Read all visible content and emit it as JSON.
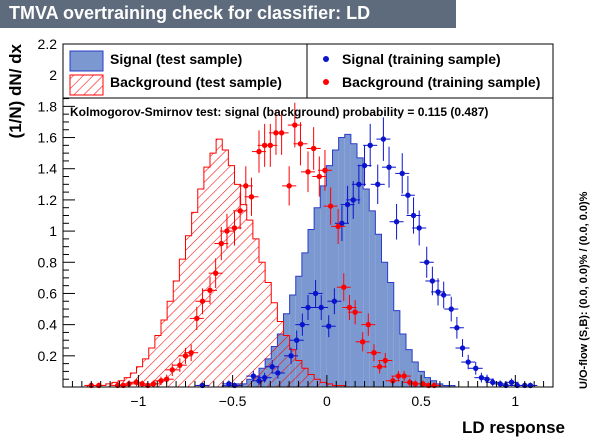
{
  "chart_data": {
    "type": "bar",
    "title": "TMVA overtraining check for classifier: LD",
    "xlabel": "LD response",
    "ylabel": "(1/N) dN/ dx",
    "right_label": "U/O-flow (S,B): (0.0, 0.0)% / (0.0, 0.0)%",
    "ks_text": "Kolmogorov-Smirnov test: signal (background) probability = 0.115 (0.487)",
    "xlim": [
      -1.4,
      1.2
    ],
    "ylim": [
      0,
      2.2
    ],
    "x_ticks": [
      -1,
      -0.5,
      0,
      0.5,
      1
    ],
    "x_tick_labels": [
      "−1",
      "−0.5",
      "0",
      "0.5",
      "1"
    ],
    "y_ticks": [
      0.2,
      0.4,
      0.6,
      0.8,
      1,
      1.2,
      1.4,
      1.6,
      1.8,
      2,
      2.2
    ],
    "y_tick_labels": [
      "0.2",
      "0.4",
      "0.6",
      "0.8",
      "1",
      "1.2",
      "1.4",
      "1.6",
      "1.8",
      "2",
      "2.2"
    ],
    "bin_edges_start": -1.4,
    "bin_width": 0.0325,
    "grid": false,
    "legend": {
      "placement": "top",
      "entries": [
        {
          "key": "signal_test",
          "label": "Signal (test sample)"
        },
        {
          "key": "signal_train",
          "label": "Signal (training sample)"
        },
        {
          "key": "background_test",
          "label": "Background (test sample)"
        },
        {
          "key": "background_train",
          "label": "Background (training sample)"
        }
      ]
    },
    "colors": {
      "signal_fill": "#7b98d1",
      "signal_line": "#2a3cc8",
      "signal_marker": "#0b14cc",
      "background": "#ff0000",
      "banner": "#5d6b7d"
    },
    "series": [
      {
        "key": "signal_test",
        "name": "Signal (test sample)",
        "style": "filled-histogram",
        "values": [
          0,
          0,
          0,
          0,
          0,
          0,
          0,
          0,
          0,
          0,
          0,
          0,
          0,
          0,
          0,
          0,
          0,
          0,
          0,
          0,
          0,
          0,
          0,
          0,
          0,
          0,
          0.01,
          0.01,
          0.02,
          0.02,
          0.05,
          0.07,
          0.12,
          0.18,
          0.26,
          0.34,
          0.47,
          0.59,
          0.71,
          0.86,
          1.01,
          1.15,
          1.29,
          1.42,
          1.52,
          1.6,
          1.62,
          1.56,
          1.47,
          1.27,
          1.13,
          0.98,
          0.8,
          0.67,
          0.49,
          0.34,
          0.24,
          0.16,
          0.1,
          0.06,
          0.04,
          0.02,
          0.01,
          0.01,
          0,
          0,
          0,
          0,
          0,
          0
        ]
      },
      {
        "key": "background_test",
        "name": "Background (test sample)",
        "style": "hatched-histogram",
        "values": [
          0,
          0,
          0,
          0,
          0.01,
          0.01,
          0.01,
          0.02,
          0.03,
          0.04,
          0.06,
          0.09,
          0.13,
          0.18,
          0.25,
          0.33,
          0.43,
          0.55,
          0.68,
          0.82,
          0.97,
          1.12,
          1.27,
          1.41,
          1.5,
          1.59,
          1.52,
          1.42,
          1.3,
          1.17,
          1.07,
          0.95,
          0.8,
          0.67,
          0.54,
          0.42,
          0.33,
          0.24,
          0.17,
          0.12,
          0.08,
          0.05,
          0.03,
          0.02,
          0.01,
          0.01,
          0,
          0,
          0,
          0,
          0,
          0,
          0,
          0,
          0,
          0,
          0,
          0,
          0,
          0,
          0,
          0,
          0,
          0,
          0,
          0,
          0,
          0,
          0,
          0
        ]
      },
      {
        "key": "signal_train",
        "name": "Signal (training sample)",
        "style": "points",
        "x": [
          -0.66,
          -0.52,
          -0.49,
          -0.39,
          -0.36,
          -0.33,
          -0.29,
          -0.26,
          -0.19,
          -0.16,
          -0.13,
          -0.1,
          -0.06,
          -0.03,
          0.01,
          0.04,
          0.08,
          0.11,
          0.14,
          0.17,
          0.2,
          0.23,
          0.27,
          0.3,
          0.33,
          0.37,
          0.4,
          0.43,
          0.46,
          0.49,
          0.53,
          0.56,
          0.59,
          0.62,
          0.66,
          0.69,
          0.72,
          0.75,
          0.79,
          0.82,
          0.85,
          0.88,
          0.92,
          0.95,
          0.98,
          1.01,
          1.05,
          1.08
        ],
        "values": [
          0.01,
          0.02,
          0.01,
          0.07,
          0.04,
          0.06,
          0.13,
          0.09,
          0.2,
          0.3,
          0.4,
          0.51,
          0.6,
          0.51,
          0.39,
          0.55,
          1.05,
          1.17,
          1.2,
          1.3,
          1.42,
          1.55,
          1.3,
          1.59,
          1.41,
          1.06,
          1.37,
          1.23,
          1.1,
          1.02,
          0.8,
          0.68,
          0.61,
          0.59,
          0.5,
          0.38,
          0.25,
          0.16,
          0.12,
          0.06,
          0.05,
          0.03,
          0.02,
          0.01,
          0.03,
          0.01,
          0.01,
          0.01
        ]
      },
      {
        "key": "background_train",
        "name": "Background (training sample)",
        "style": "points",
        "x": [
          -1.25,
          -1.21,
          -1.11,
          -1.08,
          -1.05,
          -1.01,
          -0.98,
          -0.95,
          -0.92,
          -0.88,
          -0.85,
          -0.82,
          -0.78,
          -0.75,
          -0.72,
          -0.69,
          -0.66,
          -0.62,
          -0.59,
          -0.56,
          -0.53,
          -0.49,
          -0.46,
          -0.43,
          -0.4,
          -0.36,
          -0.33,
          -0.3,
          -0.27,
          -0.24,
          -0.2,
          -0.17,
          -0.14,
          -0.1,
          -0.07,
          -0.04,
          -0.01,
          0.02,
          0.06,
          0.09,
          0.12,
          0.15,
          0.19,
          0.22,
          0.25,
          0.28,
          0.31,
          0.35,
          0.38,
          0.41,
          0.44,
          0.47,
          0.51,
          0.54,
          0.57
        ],
        "values": [
          0.01,
          0.01,
          0.01,
          0.01,
          0.02,
          0.03,
          0.02,
          0.01,
          0.02,
          0.04,
          0.05,
          0.11,
          0.14,
          0.2,
          0.22,
          0.44,
          0.55,
          0.62,
          0.73,
          0.92,
          1.0,
          1.02,
          1.13,
          1.29,
          1.22,
          1.51,
          1.55,
          1.55,
          1.63,
          1.63,
          1.29,
          1.68,
          1.56,
          1.38,
          1.53,
          1.35,
          1.39,
          1.16,
          1.03,
          0.64,
          0.51,
          0.48,
          0.29,
          0.4,
          0.22,
          0.13,
          0.17,
          0.04,
          0.07,
          0.07,
          0.03,
          0.02,
          0.02,
          0.01,
          0.01
        ]
      }
    ]
  }
}
